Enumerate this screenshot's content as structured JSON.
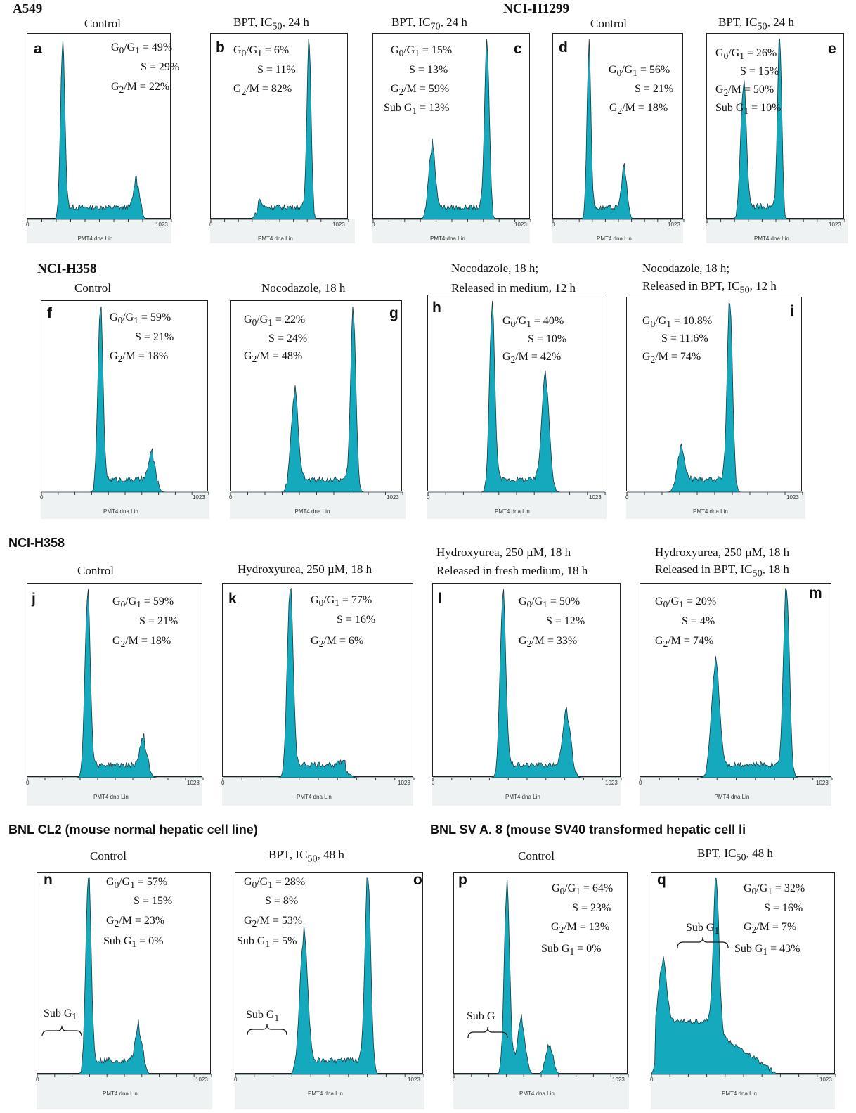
{
  "groups": [
    {
      "label": "A549"
    },
    {
      "label": "NCI-H1299"
    },
    {
      "label": "NCI-H358"
    },
    {
      "label": "NCI-H358"
    },
    {
      "label": "BNL CL2 (mouse normal hepatic cell line)"
    },
    {
      "label": "BNL SV A. 8 (mouse SV40 transformed hepatic cell li"
    }
  ],
  "axis": {
    "min_label": "0",
    "max_label": "1023",
    "xlabel": "PMT4 dna Lin"
  },
  "fill_color": "#14a9bd",
  "chart_data": [
    {
      "type": "area",
      "panel": "a",
      "title": "Control",
      "x": [
        0,
        1023
      ],
      "annotations": [
        "G0/G1 = 49%",
        "S = 29%",
        "G2/M = 22%"
      ],
      "peaks": [
        {
          "x": 250,
          "rel_height": 1.0
        },
        {
          "x": 780,
          "rel_height": 0.2
        }
      ]
    },
    {
      "type": "area",
      "panel": "b",
      "title": "BPT, IC50, 24 h",
      "x": [
        0,
        1023
      ],
      "annotations": [
        "G0/G1 = 6%",
        "S = 11%",
        "G2/M = 82%"
      ],
      "peaks": [
        {
          "x": 350,
          "rel_height": 0.05
        },
        {
          "x": 730,
          "rel_height": 1.0
        }
      ]
    },
    {
      "type": "area",
      "panel": "c",
      "title": "BPT, IC70, 24 h",
      "x": [
        0,
        1023
      ],
      "annotations": [
        "G0/G1 = 15%",
        "S = 13%",
        "G2/M = 59%",
        "Sub G1 = 13%"
      ],
      "peaks": [
        {
          "x": 380,
          "rel_height": 0.4
        },
        {
          "x": 740,
          "rel_height": 1.0
        }
      ]
    },
    {
      "type": "area",
      "panel": "d",
      "title": "Control",
      "x": [
        0,
        1023
      ],
      "annotations": [
        "G0/G1 = 56%",
        "S = 21%",
        "G2/M = 18%"
      ],
      "peaks": [
        {
          "x": 280,
          "rel_height": 1.0
        },
        {
          "x": 560,
          "rel_height": 0.27
        }
      ]
    },
    {
      "type": "area",
      "panel": "e",
      "title": "BPT, IC50, 24 h",
      "x": [
        0,
        1023
      ],
      "annotations": [
        "G0/G1 = 26%",
        "S = 15%",
        "G2/M = 50%",
        "Sub G1 = 10%"
      ],
      "peaks": [
        {
          "x": 270,
          "rel_height": 0.7
        },
        {
          "x": 540,
          "rel_height": 0.94
        }
      ]
    },
    {
      "type": "area",
      "panel": "f",
      "title": "Control",
      "x": [
        0,
        1023
      ],
      "annotations": [
        "G0/G1 = 59%",
        "S = 21%",
        "G2/M = 18%"
      ],
      "peaks": [
        {
          "x": 360,
          "rel_height": 1.0
        },
        {
          "x": 680,
          "rel_height": 0.17
        }
      ]
    },
    {
      "type": "area",
      "panel": "g",
      "title": "Nocodazole, 18 h",
      "x": [
        0,
        1023
      ],
      "annotations": [
        "G0/G1 = 22%",
        "S = 24%",
        "G2/M = 48%"
      ],
      "peaks": [
        {
          "x": 380,
          "rel_height": 0.53
        },
        {
          "x": 730,
          "rel_height": 1.0
        }
      ]
    },
    {
      "type": "area",
      "panel": "h",
      "title": "Nocodazole, 18 h; Released in medium, 12 h",
      "x": [
        0,
        1023
      ],
      "annotations": [
        "G0/G1 = 40%",
        "S = 10%",
        "G2/M = 42%"
      ],
      "peaks": [
        {
          "x": 370,
          "rel_height": 1.0
        },
        {
          "x": 680,
          "rel_height": 0.62
        }
      ]
    },
    {
      "type": "area",
      "panel": "i",
      "title": "Nocodazole, 18 h; Released in BPT, IC50, 12 h",
      "x": [
        0,
        1023
      ],
      "annotations": [
        "G0/G1 = 10.8%",
        "S = 11.6%",
        "G2/M = 74%"
      ],
      "peaks": [
        {
          "x": 310,
          "rel_height": 0.19
        },
        {
          "x": 600,
          "rel_height": 1.0
        }
      ]
    },
    {
      "type": "area",
      "panel": "j",
      "title": "Control",
      "x": [
        0,
        1023
      ],
      "annotations": [
        "G0/G1 = 59%",
        "S = 21%",
        "G2/M = 18%"
      ],
      "peaks": [
        {
          "x": 350,
          "rel_height": 1.0
        },
        {
          "x": 680,
          "rel_height": 0.17
        }
      ]
    },
    {
      "type": "area",
      "panel": "k",
      "title": "Hydroxyurea, 250 µM, 18 h",
      "x": [
        0,
        1023
      ],
      "annotations": [
        "G0/G1 = 77%",
        "S = 16%",
        "G2/M = 6%"
      ],
      "peaks": [
        {
          "x": 360,
          "rel_height": 1.0
        },
        {
          "x": 660,
          "rel_height": 0.03
        }
      ]
    },
    {
      "type": "area",
      "panel": "l",
      "title": "Hydroxyurea, 250 µM, 18 h Released in fresh medium, 18 h",
      "x": [
        0,
        1023
      ],
      "annotations": [
        "G0/G1 = 50%",
        "S = 12%",
        "G2/M = 33%"
      ],
      "peaks": [
        {
          "x": 380,
          "rel_height": 1.0
        },
        {
          "x": 730,
          "rel_height": 0.33
        }
      ]
    },
    {
      "type": "area",
      "panel": "m",
      "title": "Hydroxyurea, 250 µM, 18 h Released in BPT, IC50, 18 h",
      "x": [
        0,
        1023
      ],
      "annotations": [
        "G0/G1 = 20%",
        "S = 4%",
        "G2/M = 74%"
      ],
      "peaks": [
        {
          "x": 400,
          "rel_height": 0.58
        },
        {
          "x": 780,
          "rel_height": 1.0
        }
      ]
    },
    {
      "type": "area",
      "panel": "n",
      "title": "Control",
      "x": [
        0,
        1023
      ],
      "annotations": [
        "G0/G1 = 57%",
        "S = 15%",
        "G2/M = 23%",
        "Sub G1 = 0%"
      ],
      "bracket_label": "Sub G1",
      "peaks": [
        {
          "x": 300,
          "rel_height": 1.0
        },
        {
          "x": 600,
          "rel_height": 0.2
        }
      ]
    },
    {
      "type": "area",
      "panel": "o",
      "title": "BPT, IC50, 48 h",
      "x": [
        0,
        1023
      ],
      "annotations": [
        "G0/G1 = 28%",
        "S = 8%",
        "G2/M = 53%",
        "Sub G1 = 5%"
      ],
      "bracket_label": "Sub G1",
      "peaks": [
        {
          "x": 370,
          "rel_height": 0.68
        },
        {
          "x": 720,
          "rel_height": 1.0
        }
      ]
    },
    {
      "type": "area",
      "panel": "p",
      "title": "Control",
      "x": [
        0,
        1023
      ],
      "annotations": [
        "G0/G1 = 64%",
        "S = 23%",
        "G2/M = 13%",
        "Sub G1 = 0%"
      ],
      "bracket_label": "Sub G",
      "peaks": [
        {
          "x": 310,
          "rel_height": 1.0
        },
        {
          "x": 400,
          "rel_height": 0.25
        },
        {
          "x": 560,
          "rel_height": 0.16
        }
      ]
    },
    {
      "type": "area",
      "panel": "q",
      "title": "BPT, IC50, 48 h",
      "x": [
        0,
        1023
      ],
      "annotations": [
        "G0/G1 = 32%",
        "S = 16%",
        "G2/M = 7%",
        "Sub G1 = 43%"
      ],
      "bracket_label": "Sub G1",
      "peaks": [
        {
          "x": 360,
          "rel_height": 1.0
        },
        {
          "x": 60,
          "rel_height": 0.45
        }
      ]
    }
  ]
}
